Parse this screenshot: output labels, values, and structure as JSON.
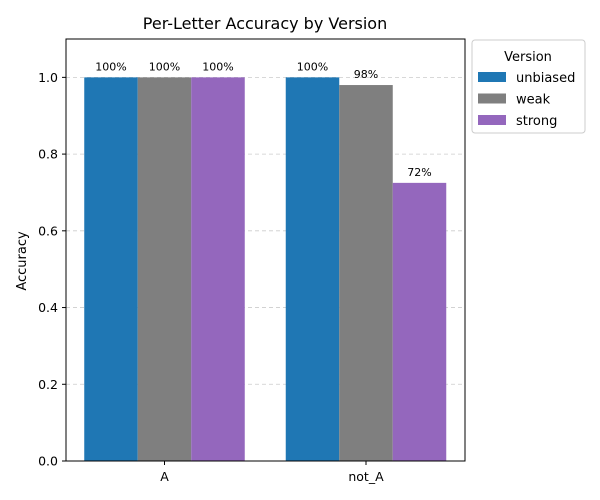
{
  "chart_data": {
    "type": "bar",
    "title": "Per-Letter Accuracy by Version",
    "xlabel": "",
    "ylabel": "Accuracy",
    "categories": [
      "A",
      "not_A"
    ],
    "series": [
      {
        "name": "unbiased",
        "color": "#1f77b4",
        "values": [
          1.0,
          1.0
        ],
        "labels": [
          "100%",
          "100%"
        ]
      },
      {
        "name": "weak",
        "color": "#7f7f7f",
        "values": [
          1.0,
          0.98
        ],
        "labels": [
          "100%",
          "98%"
        ]
      },
      {
        "name": "strong",
        "color": "#9467bd",
        "values": [
          1.0,
          0.725
        ],
        "labels": [
          "100%",
          "72%"
        ]
      }
    ],
    "ylim": [
      0,
      1.1
    ],
    "yticks": [
      "0.0",
      "0.2",
      "0.4",
      "0.6",
      "0.8",
      "1.0"
    ],
    "grid": "y-dashed",
    "legend": {
      "title": "Version",
      "position": "outside-top-right"
    }
  }
}
